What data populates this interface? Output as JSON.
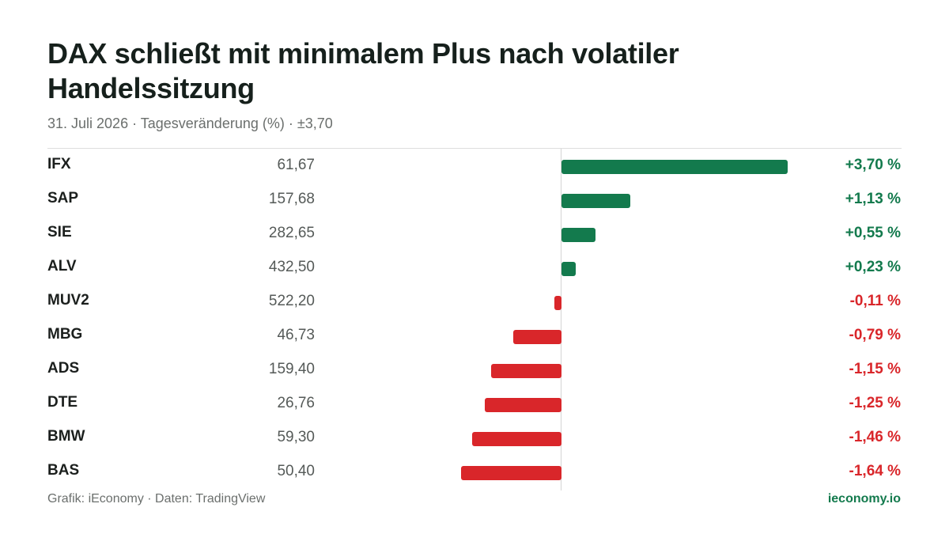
{
  "header": {
    "title": "DAX schließt mit minimalem Plus nach volatiler Handelssitzung",
    "subtitle": "31. Juli 2026 · Tagesveränderung (%) · ±3,70"
  },
  "footer": {
    "source": "Grafik: iEconomy · Daten: TradingView",
    "brand": "ieconomy.io"
  },
  "colors": {
    "positive": "#137a4d",
    "negative": "#d9262a"
  },
  "chart_data": {
    "type": "bar",
    "orientation": "horizontal",
    "title": "DAX schließt mit minimalem Plus nach volatiler Handelssitzung",
    "subtitle": "31. Juli 2026 · Tagesveränderung (%) · ±3,70",
    "xlim": [
      -3.7,
      3.7
    ],
    "grid": false,
    "categories": [
      "IFX",
      "SAP",
      "SIE",
      "ALV",
      "MUV2",
      "MBG",
      "ADS",
      "DTE",
      "BMW",
      "BAS"
    ],
    "prices": [
      "61,67",
      "157,68",
      "282,65",
      "432,50",
      "522,20",
      "46,73",
      "159,40",
      "26,76",
      "59,30",
      "50,40"
    ],
    "values": [
      3.7,
      1.13,
      0.55,
      0.23,
      -0.11,
      -0.79,
      -1.15,
      -1.25,
      -1.46,
      -1.64
    ],
    "value_labels": [
      "+3,70 %",
      "+1,13 %",
      "+0,55 %",
      "+0,23 %",
      "-0,11 %",
      "-0,79 %",
      "-1,15 %",
      "-1,25 %",
      "-1,46 %",
      "-1,64 %"
    ]
  }
}
